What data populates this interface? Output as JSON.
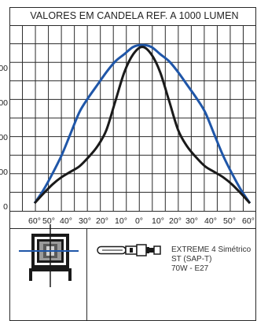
{
  "chart_data": {
    "type": "line",
    "title": "VALORES EM CANDELA REF. A 1000 LUMEN",
    "x_tick_labels": [
      "60°",
      "50°",
      "40°",
      "30°",
      "20°",
      "10°",
      "0°",
      "10°",
      "20°",
      "30°",
      "40°",
      "50°",
      "60°"
    ],
    "x_range": [
      -60,
      60
    ],
    "x_unit": "degrees",
    "y_tick_labels": [
      "00",
      "00",
      "00",
      "00",
      "0"
    ],
    "y_range": [
      0,
      500
    ],
    "grid": true,
    "series": [
      {
        "color": "#1f56a8",
        "x": [
          -60,
          -55,
          -50,
          -45,
          -40,
          -35,
          -30,
          -25,
          -20,
          -15,
          -10,
          -5,
          0,
          5,
          10,
          15,
          20,
          25,
          30,
          35,
          40,
          45,
          50,
          55,
          60
        ],
        "y": [
          8,
          45,
          90,
          140,
          200,
          260,
          300,
          335,
          370,
          400,
          420,
          440,
          445,
          440,
          420,
          400,
          370,
          335,
          300,
          260,
          200,
          140,
          90,
          45,
          8
        ]
      },
      {
        "color": "#1a1a1a",
        "x": [
          -60,
          -55,
          -50,
          -45,
          -40,
          -35,
          -30,
          -25,
          -20,
          -15,
          -10,
          -5,
          0,
          5,
          10,
          15,
          20,
          25,
          30,
          35,
          40,
          45,
          50,
          55,
          60
        ],
        "y": [
          8,
          35,
          60,
          80,
          95,
          110,
          135,
          165,
          210,
          290,
          370,
          420,
          440,
          420,
          370,
          290,
          210,
          165,
          135,
          110,
          95,
          80,
          60,
          35,
          8
        ]
      }
    ]
  },
  "info": {
    "line1": "EXTREME 4 Simétrico",
    "line2": "ST (SAP-T)",
    "line3": "70W - E27"
  },
  "colors": {
    "grid": "#2a2a2a",
    "curve_blue": "#1f56a8",
    "curve_black": "#1a1a1a"
  }
}
